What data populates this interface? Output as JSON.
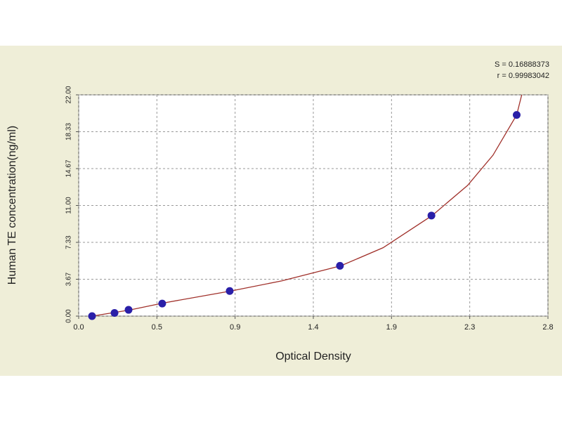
{
  "chart_data": {
    "type": "scatter",
    "annotations": [
      "S = 0.16888373",
      "r = 0.99983042"
    ],
    "x_label": "Optical Density",
    "y_label": "Human TE concentration(ng/ml)",
    "xlim": [
      0,
      2.775
    ],
    "ylim": [
      0,
      22
    ],
    "xticks": [
      {
        "value": 0,
        "label": "0.0"
      },
      {
        "value": 0.4625,
        "label": "0.5"
      },
      {
        "value": 0.925,
        "label": "0.9"
      },
      {
        "value": 1.3875,
        "label": "1.4"
      },
      {
        "value": 1.85,
        "label": "1.9"
      },
      {
        "value": 2.3125,
        "label": "2.3"
      },
      {
        "value": 2.775,
        "label": "2.8"
      }
    ],
    "yticks": [
      {
        "value": 0,
        "label": "0.00"
      },
      {
        "value": 3.6667,
        "label": "3.67"
      },
      {
        "value": 7.3333,
        "label": "7.33"
      },
      {
        "value": 11,
        "label": "11.00"
      },
      {
        "value": 14.6667,
        "label": "14.67"
      },
      {
        "value": 18.3333,
        "label": "18.33"
      },
      {
        "value": 22,
        "label": "22.00"
      }
    ],
    "grid": true,
    "series": [
      {
        "mode": "markers",
        "color": "#2a1fa8",
        "x": [
          0.079,
          0.212,
          0.295,
          0.494,
          0.893,
          1.545,
          2.086,
          2.59
        ],
        "values": [
          0,
          0.3125,
          0.625,
          1.25,
          2.5,
          5,
          10,
          20
        ]
      },
      {
        "mode": "line",
        "color": "#a0302a",
        "x": [
          0.079,
          0.3,
          0.5,
          0.9,
          1.2,
          1.55,
          1.8,
          2.09,
          2.3,
          2.45,
          2.59,
          2.62
        ],
        "values": [
          0,
          0.6,
          1.3,
          2.5,
          3.5,
          5,
          6.8,
          10,
          13,
          16,
          20,
          22
        ]
      }
    ]
  }
}
